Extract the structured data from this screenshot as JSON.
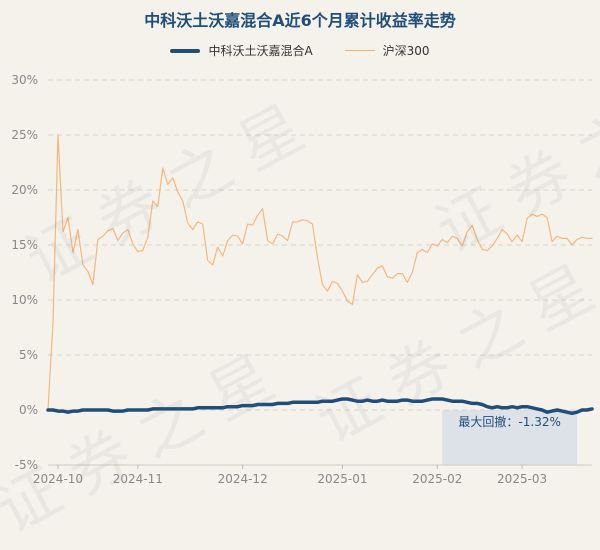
{
  "title": "中科沃土沃嘉混合A近6个月累计收益率走势",
  "watermark": "证券之星",
  "annotation": "最大回撤：-1.32%",
  "colors": {
    "fund": "#1f4e7a",
    "index": "#f3b77d",
    "drawdown": "#d6dde6",
    "grid": "#d8d3cc",
    "axis_text": "#888888"
  },
  "chart_data": {
    "type": "line",
    "title": "中科沃土沃嘉混合A近6个月累计收益率走势",
    "ylim": [
      -5,
      30
    ],
    "y_ticks": [
      -5,
      0,
      5,
      10,
      15,
      20,
      25,
      30
    ],
    "y_tick_labels": [
      "-5%",
      "0%",
      "5%",
      "10%",
      "15%",
      "20%",
      "25%",
      "30%"
    ],
    "x_ticks": [
      "2024-10",
      "2024-11",
      "2024-12",
      "2025-01",
      "2025-02",
      "2025-03"
    ],
    "x_tick_index": [
      2,
      18,
      39,
      59,
      78,
      95
    ],
    "drawdown_range_index": [
      79,
      106
    ],
    "legend_position": "top-center",
    "series": [
      {
        "name": "中科沃土沃嘉混合A",
        "values": [
          0.0,
          0.0,
          -0.1,
          -0.1,
          -0.2,
          -0.1,
          -0.1,
          0.0,
          0.0,
          0.0,
          0.0,
          0.0,
          0.0,
          -0.1,
          -0.1,
          -0.1,
          0.0,
          0.0,
          0.0,
          0.0,
          0.0,
          0.1,
          0.1,
          0.1,
          0.1,
          0.1,
          0.1,
          0.1,
          0.1,
          0.1,
          0.2,
          0.2,
          0.2,
          0.2,
          0.2,
          0.2,
          0.3,
          0.3,
          0.3,
          0.4,
          0.4,
          0.4,
          0.5,
          0.5,
          0.5,
          0.5,
          0.6,
          0.6,
          0.6,
          0.7,
          0.7,
          0.7,
          0.7,
          0.7,
          0.7,
          0.8,
          0.8,
          0.8,
          0.9,
          1.0,
          1.0,
          0.9,
          0.8,
          0.8,
          0.9,
          0.8,
          0.8,
          0.9,
          0.8,
          0.8,
          0.8,
          0.9,
          0.9,
          0.8,
          0.8,
          0.8,
          0.9,
          1.0,
          1.0,
          1.0,
          0.9,
          0.8,
          0.8,
          0.8,
          0.7,
          0.6,
          0.6,
          0.5,
          0.3,
          0.2,
          0.3,
          0.2,
          0.2,
          0.3,
          0.2,
          0.3,
          0.3,
          0.2,
          0.1,
          0.0,
          -0.2,
          -0.1,
          0.0,
          -0.1,
          -0.2,
          -0.3,
          -0.2,
          0.0,
          0.0,
          0.1
        ]
      },
      {
        "name": "沪深300",
        "values": [
          0.0,
          8.0,
          25.0,
          16.2,
          17.5,
          14.3,
          16.4,
          13.2,
          12.6,
          11.4,
          15.5,
          15.8,
          16.3,
          16.5,
          15.4,
          16.1,
          16.4,
          15.1,
          14.4,
          14.5,
          15.7,
          19.0,
          18.5,
          22.0,
          20.5,
          21.1,
          19.8,
          19.0,
          17.0,
          16.4,
          17.1,
          16.9,
          13.6,
          13.2,
          14.8,
          14.0,
          15.4,
          15.9,
          15.8,
          15.1,
          16.9,
          16.8,
          17.7,
          18.3,
          15.4,
          15.1,
          16.0,
          15.8,
          15.4,
          17.1,
          17.1,
          17.3,
          17.2,
          16.9,
          13.8,
          11.4,
          10.8,
          11.7,
          11.5,
          10.8,
          9.9,
          9.6,
          12.3,
          11.6,
          11.7,
          12.3,
          12.9,
          13.1,
          12.1,
          12.0,
          12.4,
          12.4,
          11.6,
          12.5,
          14.3,
          14.6,
          14.3,
          15.1,
          14.9,
          15.5,
          15.2,
          15.8,
          15.6,
          14.9,
          16.2,
          16.8,
          15.5,
          14.6,
          14.5,
          14.9,
          15.6,
          16.4,
          16.0,
          15.3,
          15.9,
          15.3,
          17.4,
          17.8,
          17.6,
          17.8,
          17.5,
          15.3,
          15.8,
          15.6,
          15.6,
          15.0,
          15.5,
          15.7,
          15.6,
          15.6
        ]
      }
    ]
  }
}
